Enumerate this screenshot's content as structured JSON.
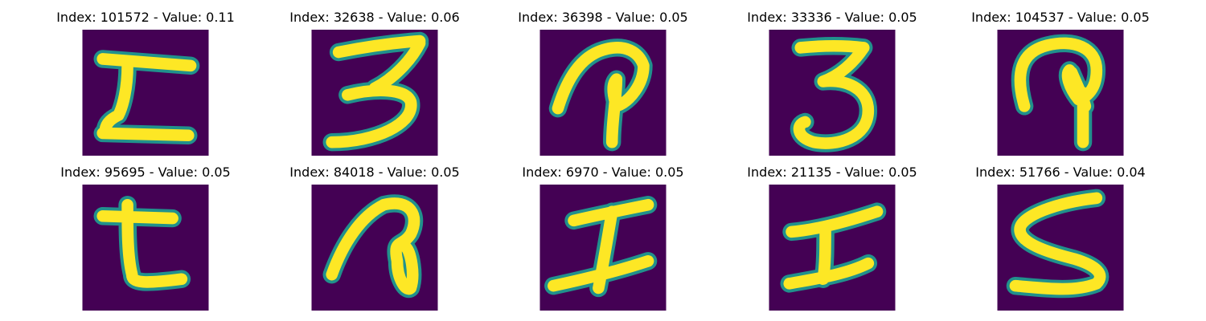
{
  "colors": {
    "background": "#440154",
    "stroke_core": "#fde725",
    "stroke_edge": "#21918c",
    "stroke_mid": "#5ec962"
  },
  "panels": [
    {
      "title": "Index: 101572 - Value: 0.11",
      "image": "handwritten character, I-like glyph"
    },
    {
      "title": "Index: 32638 - Value: 0.06",
      "image": "handwritten digit 3"
    },
    {
      "title": "Index: 36398 - Value: 0.05",
      "image": "handwritten curled P-like glyph"
    },
    {
      "title": "Index: 33336 - Value: 0.05",
      "image": "handwritten digit 3"
    },
    {
      "title": "Index: 104537 - Value: 0.05",
      "image": "handwritten curled hook glyph"
    },
    {
      "title": "Index: 95695 - Value: 0.05",
      "image": "handwritten character, t-like glyph"
    },
    {
      "title": "Index: 84018 - Value: 0.05",
      "image": "handwritten looped glyph"
    },
    {
      "title": "Index: 6970 - Value: 0.05",
      "image": "handwritten character, I-like glyph"
    },
    {
      "title": "Index: 21135 - Value: 0.05",
      "image": "handwritten character, I glyph"
    },
    {
      "title": "Index: 51766 - Value: 0.04",
      "image": "handwritten character S"
    }
  ]
}
